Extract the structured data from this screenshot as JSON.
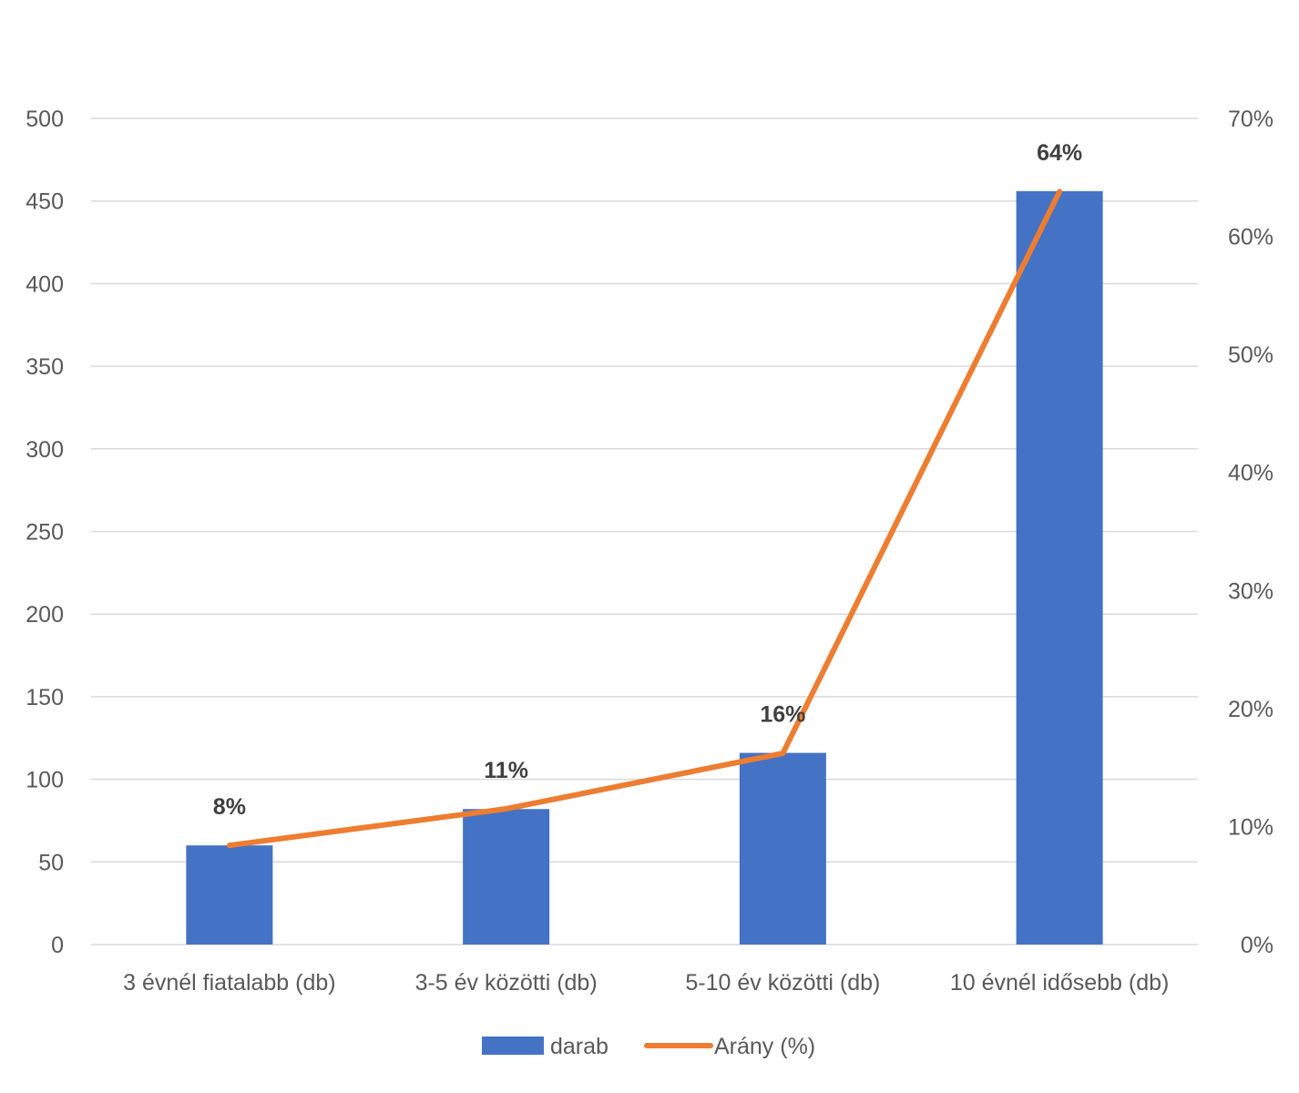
{
  "chart_data": {
    "type": "bar",
    "categories": [
      "3 évnél fiatalabb (db)",
      "3-5 év közötti (db)",
      "5-10 év közötti (db)",
      "10 évnél idősebb (db)"
    ],
    "series": [
      {
        "name": "darab",
        "type": "bar",
        "axis": "left",
        "color": "#4472c4",
        "values": [
          60,
          82,
          116,
          456
        ]
      },
      {
        "name": "Arány (%)",
        "type": "line",
        "axis": "right",
        "color": "#ed7d31",
        "values": [
          8.4,
          11.5,
          16.2,
          63.8
        ],
        "data_labels": [
          "8%",
          "11%",
          "16%",
          "64%"
        ]
      }
    ],
    "y_left": {
      "range": [
        0,
        500
      ],
      "ticks": [
        "0",
        "50",
        "100",
        "150",
        "200",
        "250",
        "300",
        "350",
        "400",
        "450",
        "500"
      ]
    },
    "y_right": {
      "range": [
        0,
        70
      ],
      "ticks": [
        "0%",
        "10%",
        "20%",
        "30%",
        "40%",
        "50%",
        "60%",
        "70%"
      ]
    },
    "title": "",
    "xlabel": "",
    "ylabel": "",
    "grid": true,
    "legend": "bottom"
  }
}
